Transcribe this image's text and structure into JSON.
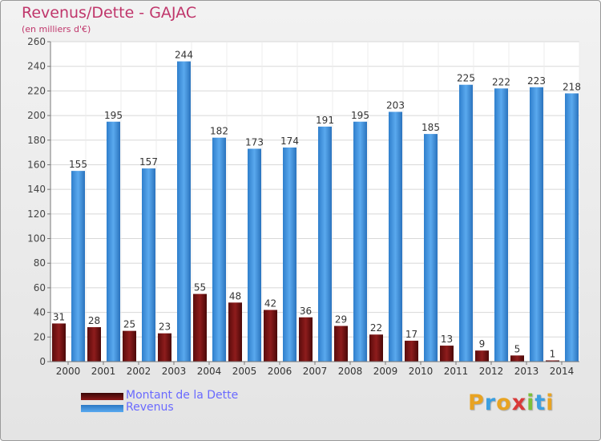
{
  "title": "Revenus/Dette - GAJAC",
  "subtitle": "(en milliers d'€)",
  "colors": {
    "title": "#c0366b",
    "debt": "#7a1212",
    "revenue": "#3d8fdc",
    "legend_text": "#6a6aff"
  },
  "chart_data": {
    "type": "bar",
    "categories": [
      "2000",
      "2001",
      "2002",
      "2003",
      "2004",
      "2005",
      "2006",
      "2007",
      "2008",
      "2009",
      "2010",
      "2011",
      "2012",
      "2013",
      "2014"
    ],
    "series": [
      {
        "name": "Montant de la Dette",
        "color": "#7a1212",
        "values": [
          31,
          28,
          25,
          23,
          55,
          48,
          42,
          36,
          29,
          22,
          17,
          13,
          9,
          5,
          1
        ]
      },
      {
        "name": "Revenus",
        "color": "#3d8fdc",
        "values": [
          155,
          195,
          157,
          244,
          182,
          173,
          174,
          191,
          195,
          203,
          185,
          225,
          222,
          223,
          218
        ]
      }
    ],
    "ylim": [
      0,
      260
    ],
    "yticks": [
      0,
      20,
      40,
      60,
      80,
      100,
      120,
      140,
      160,
      180,
      200,
      220,
      240,
      260
    ],
    "grid": true,
    "legend_position": "bottom-left"
  },
  "legend": {
    "items": [
      {
        "label": "Montant de la Dette",
        "color": "#7a1212"
      },
      {
        "label": "Revenus",
        "color": "#3d8fdc"
      }
    ]
  },
  "logo": {
    "letters": [
      "P",
      "r",
      "o",
      "x",
      "i",
      "t",
      "i"
    ],
    "colors": [
      "#e8a322",
      "#3b9fe0",
      "#e8a322",
      "#d93a3a",
      "#7cbf3a",
      "#3b9fe0",
      "#e8a322"
    ]
  }
}
